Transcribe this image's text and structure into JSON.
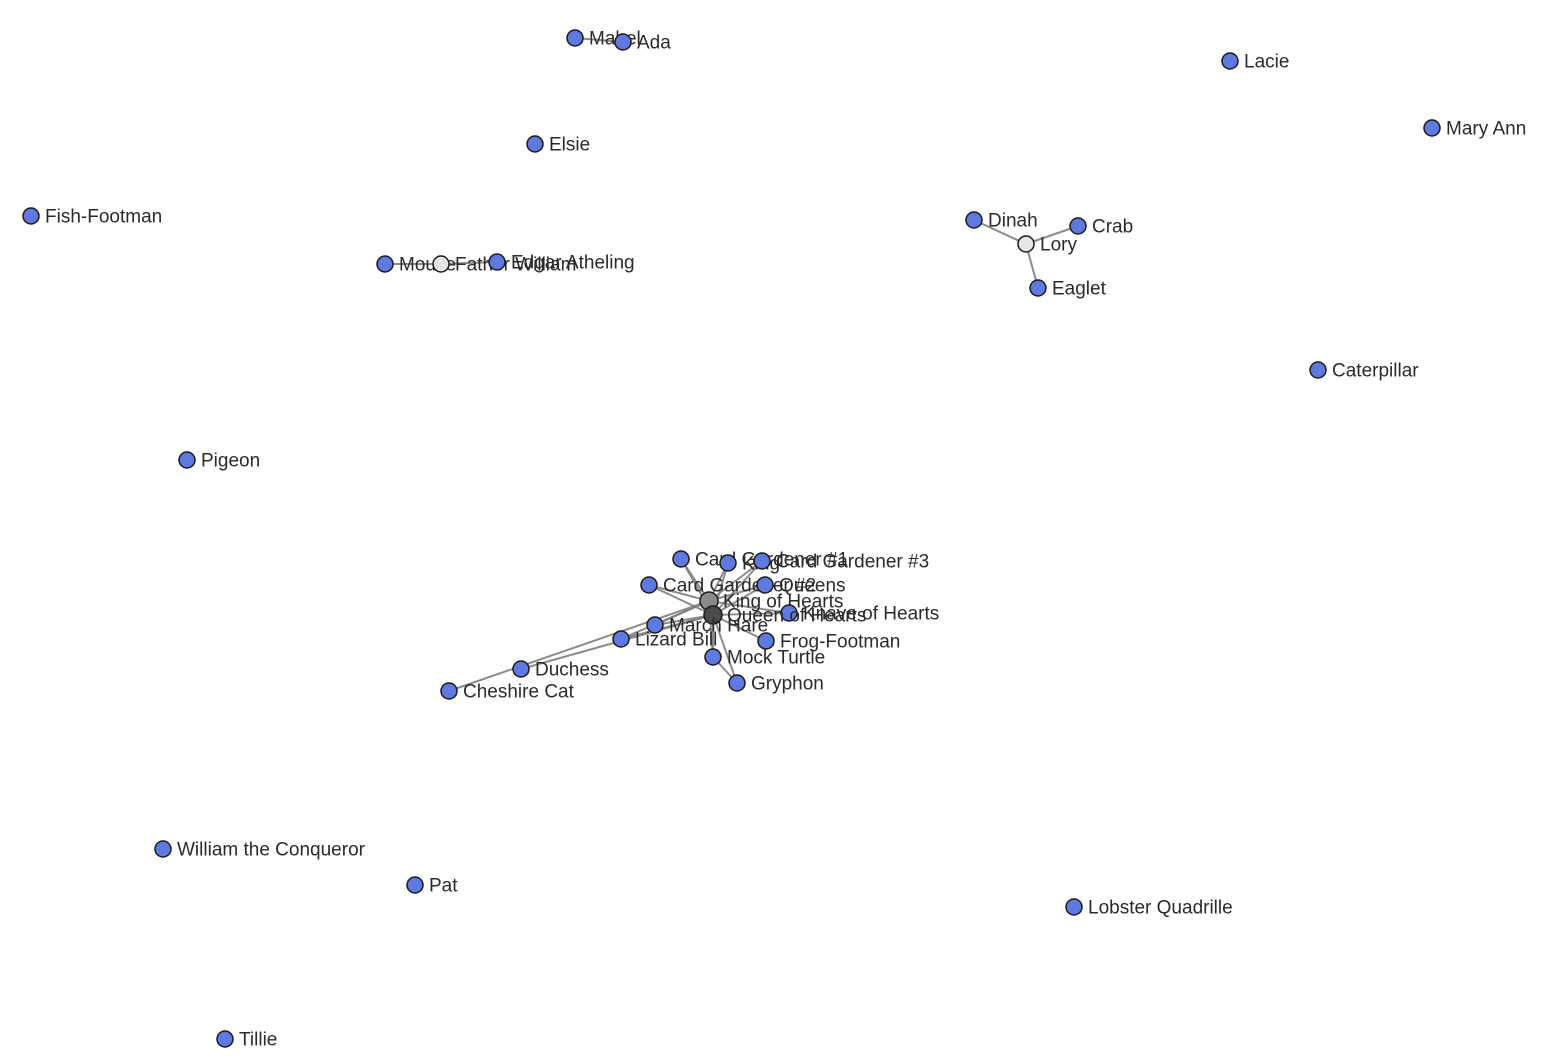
{
  "graph": {
    "colors": {
      "default": "#5f79e0",
      "light": "#e6e6e6",
      "gray": "#8a8a8a",
      "dark": "#4a4a4a",
      "edge": "#808080"
    },
    "nodes": [
      {
        "id": "mabel",
        "label": "Mabel",
        "color": "default"
      },
      {
        "id": "ada",
        "label": "Ada",
        "color": "default"
      },
      {
        "id": "lacie",
        "label": "Lacie",
        "color": "default"
      },
      {
        "id": "mary-ann",
        "label": "Mary Ann",
        "color": "default"
      },
      {
        "id": "elsie",
        "label": "Elsie",
        "color": "default"
      },
      {
        "id": "fish-footman",
        "label": "Fish-Footman",
        "color": "default"
      },
      {
        "id": "dinah",
        "label": "Dinah",
        "color": "default"
      },
      {
        "id": "crab",
        "label": "Crab",
        "color": "default"
      },
      {
        "id": "lory",
        "label": "Lory",
        "color": "light"
      },
      {
        "id": "eaglet",
        "label": "Eaglet",
        "color": "default"
      },
      {
        "id": "mouse",
        "label": "Mouse",
        "color": "default"
      },
      {
        "id": "father-william",
        "label": "Father William",
        "color": "light"
      },
      {
        "id": "edgar-atheling",
        "label": "Edgar Atheling",
        "color": "default"
      },
      {
        "id": "caterpillar",
        "label": "Caterpillar",
        "color": "default"
      },
      {
        "id": "pigeon",
        "label": "Pigeon",
        "color": "default"
      },
      {
        "id": "card-gardener-1",
        "label": "Card Gardener #1",
        "color": "default"
      },
      {
        "id": "king",
        "label": "King",
        "color": "default"
      },
      {
        "id": "card-gardener-3",
        "label": "Card Gardener #3",
        "color": "default"
      },
      {
        "id": "card-gardener-2",
        "label": "Card Gardener #2",
        "color": "default"
      },
      {
        "id": "queens",
        "label": "Queens",
        "color": "default"
      },
      {
        "id": "king-of-hearts",
        "label": "King of Hearts",
        "color": "gray"
      },
      {
        "id": "knave-of-hearts",
        "label": "Knave of Hearts",
        "color": "default"
      },
      {
        "id": "queen-of-hearts",
        "label": "Queen of Hearts",
        "color": "dark"
      },
      {
        "id": "march-hare",
        "label": "March Hare",
        "color": "default"
      },
      {
        "id": "frog-footman",
        "label": "Frog-Footman",
        "color": "default"
      },
      {
        "id": "lizard-bill",
        "label": "Lizard Bill",
        "color": "default"
      },
      {
        "id": "mock-turtle",
        "label": "Mock Turtle",
        "color": "default"
      },
      {
        "id": "duchess",
        "label": "Duchess",
        "color": "default"
      },
      {
        "id": "gryphon",
        "label": "Gryphon",
        "color": "default"
      },
      {
        "id": "cheshire-cat",
        "label": "Cheshire Cat",
        "color": "default"
      },
      {
        "id": "william-the-conqueror",
        "label": "William the Conqueror",
        "color": "default"
      },
      {
        "id": "pat",
        "label": "Pat",
        "color": "default"
      },
      {
        "id": "lobster-quadrille",
        "label": "Lobster Quadrille",
        "color": "default"
      },
      {
        "id": "tillie",
        "label": "Tillie",
        "color": "default"
      }
    ],
    "edges": [
      [
        "mabel",
        "ada"
      ],
      [
        "dinah",
        "lory"
      ],
      [
        "crab",
        "lory"
      ],
      [
        "eaglet",
        "lory"
      ],
      [
        "mouse",
        "father-william"
      ],
      [
        "father-william",
        "edgar-atheling"
      ],
      [
        "card-gardener-1",
        "king-of-hearts"
      ],
      [
        "king",
        "king-of-hearts"
      ],
      [
        "card-gardener-3",
        "king-of-hearts"
      ],
      [
        "card-gardener-2",
        "king-of-hearts"
      ],
      [
        "queens",
        "king-of-hearts"
      ],
      [
        "knave-of-hearts",
        "king-of-hearts"
      ],
      [
        "march-hare",
        "king-of-hearts"
      ],
      [
        "lizard-bill",
        "king-of-hearts"
      ],
      [
        "king-of-hearts",
        "queen-of-hearts"
      ],
      [
        "card-gardener-1",
        "queen-of-hearts"
      ],
      [
        "card-gardener-2",
        "queen-of-hearts"
      ],
      [
        "card-gardener-3",
        "queen-of-hearts"
      ],
      [
        "king",
        "queen-of-hearts"
      ],
      [
        "queens",
        "queen-of-hearts"
      ],
      [
        "knave-of-hearts",
        "queen-of-hearts"
      ],
      [
        "frog-footman",
        "queen-of-hearts"
      ],
      [
        "march-hare",
        "queen-of-hearts"
      ],
      [
        "lizard-bill",
        "queen-of-hearts"
      ],
      [
        "mock-turtle",
        "queen-of-hearts"
      ],
      [
        "gryphon",
        "queen-of-hearts"
      ],
      [
        "duchess",
        "queen-of-hearts"
      ],
      [
        "cheshire-cat",
        "king-of-hearts"
      ],
      [
        "mock-turtle",
        "gryphon"
      ],
      [
        "mock-turtle",
        "king-of-hearts"
      ]
    ]
  }
}
